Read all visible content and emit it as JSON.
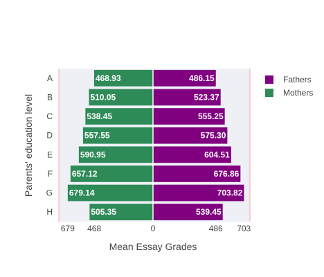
{
  "chart_data": {
    "type": "bar",
    "orientation": "horizontal",
    "layout": "diverging",
    "categories": [
      "A",
      "B",
      "C",
      "D",
      "E",
      "F",
      "G",
      "H"
    ],
    "series": [
      {
        "name": "Mothers",
        "side": "left",
        "color": "#2e8b57",
        "values": [
          468.93,
          510.05,
          538.45,
          557.55,
          590.95,
          657.12,
          679.14,
          505.35
        ],
        "labels": [
          "468.93",
          "510.05",
          "538.45",
          "557.55",
          "590.95",
          "657.12",
          "679.14",
          "505.35"
        ]
      },
      {
        "name": "Fathers",
        "side": "right",
        "color": "#800080",
        "values": [
          486.15,
          523.37,
          555.25,
          575.3,
          604.51,
          676.86,
          703.82,
          539.45
        ],
        "labels": [
          "486.15",
          "523.37",
          "555.25",
          "575.30",
          "604.51",
          "676.86",
          "703.82",
          "539.45"
        ]
      }
    ],
    "xlabel": "Mean Essay Grades",
    "ylabel": "Parents' education level",
    "xticks": [
      {
        "value": -679,
        "label": "679"
      },
      {
        "value": -468,
        "label": "468"
      },
      {
        "value": 0,
        "label": "0"
      },
      {
        "value": 486,
        "label": "486"
      },
      {
        "value": 703,
        "label": "703"
      }
    ],
    "xlim": [
      -750,
      750
    ],
    "legend": {
      "position": "top-right",
      "items": [
        {
          "name": "Fathers",
          "color": "#800080"
        },
        {
          "name": "Mothers",
          "color": "#2e8b57"
        }
      ]
    },
    "plot_background": "#eef0f5",
    "reference_line_color": "#f4a6b4"
  }
}
